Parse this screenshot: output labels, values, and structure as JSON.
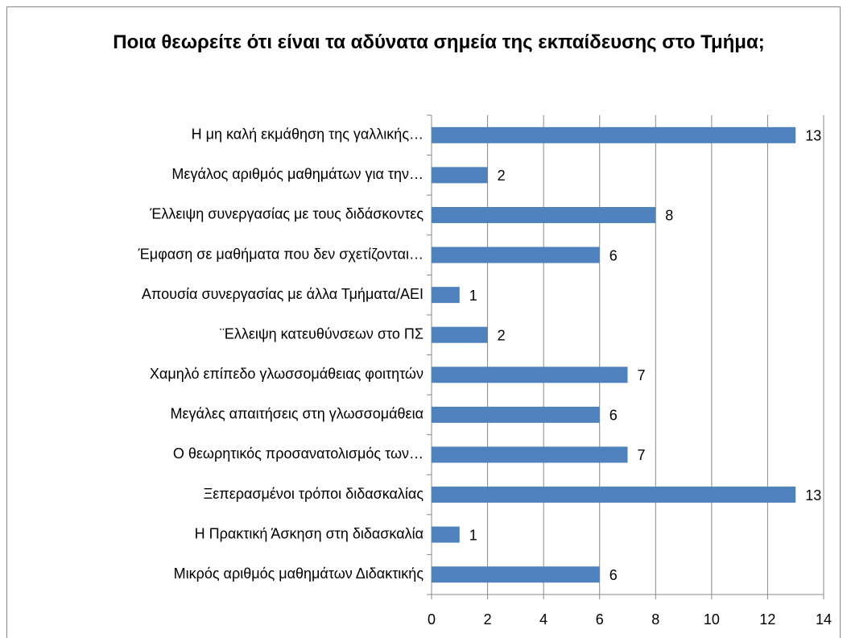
{
  "chart_data": {
    "type": "bar",
    "orientation": "horizontal",
    "title": "Ποια θεωρείτε ότι είναι τα αδύνατα σημεία της εκπαίδευσης στο Τμήμα;",
    "categories": [
      "Η μη καλή εκμάθηση της γαλλικής…",
      "Μεγάλος αριθμός μαθημάτων για την…",
      "Έλλειψη συνεργασίας με τους διδάσκοντες",
      "Έμφαση σε μαθήματα που δεν σχετίζονται…",
      "Απουσία συνεργασίας με άλλα Τμήματα/ΑΕΙ",
      "¨Ελλειψη κατευθύνσεων στο ΠΣ",
      "Χαμηλό επίπεδο γλωσσομάθειας φοιτητών",
      "Μεγάλες απαιτήσεις στη γλωσσομάθεια",
      "Ο θεωρητικός προσανατολισμός των…",
      "Ξεπερασμένοι τρόποι διδασκαλίας",
      "Η Πρακτική Άσκηση στη διδασκαλία",
      "Μικρός αριθμός μαθημάτων Διδακτικής"
    ],
    "values": [
      13,
      2,
      8,
      6,
      1,
      2,
      7,
      6,
      7,
      13,
      1,
      6
    ],
    "color": "#4f81bd",
    "xlim": [
      0,
      14
    ],
    "xticks": [
      0,
      2,
      4,
      6,
      8,
      10,
      12,
      14
    ],
    "grid": true
  }
}
